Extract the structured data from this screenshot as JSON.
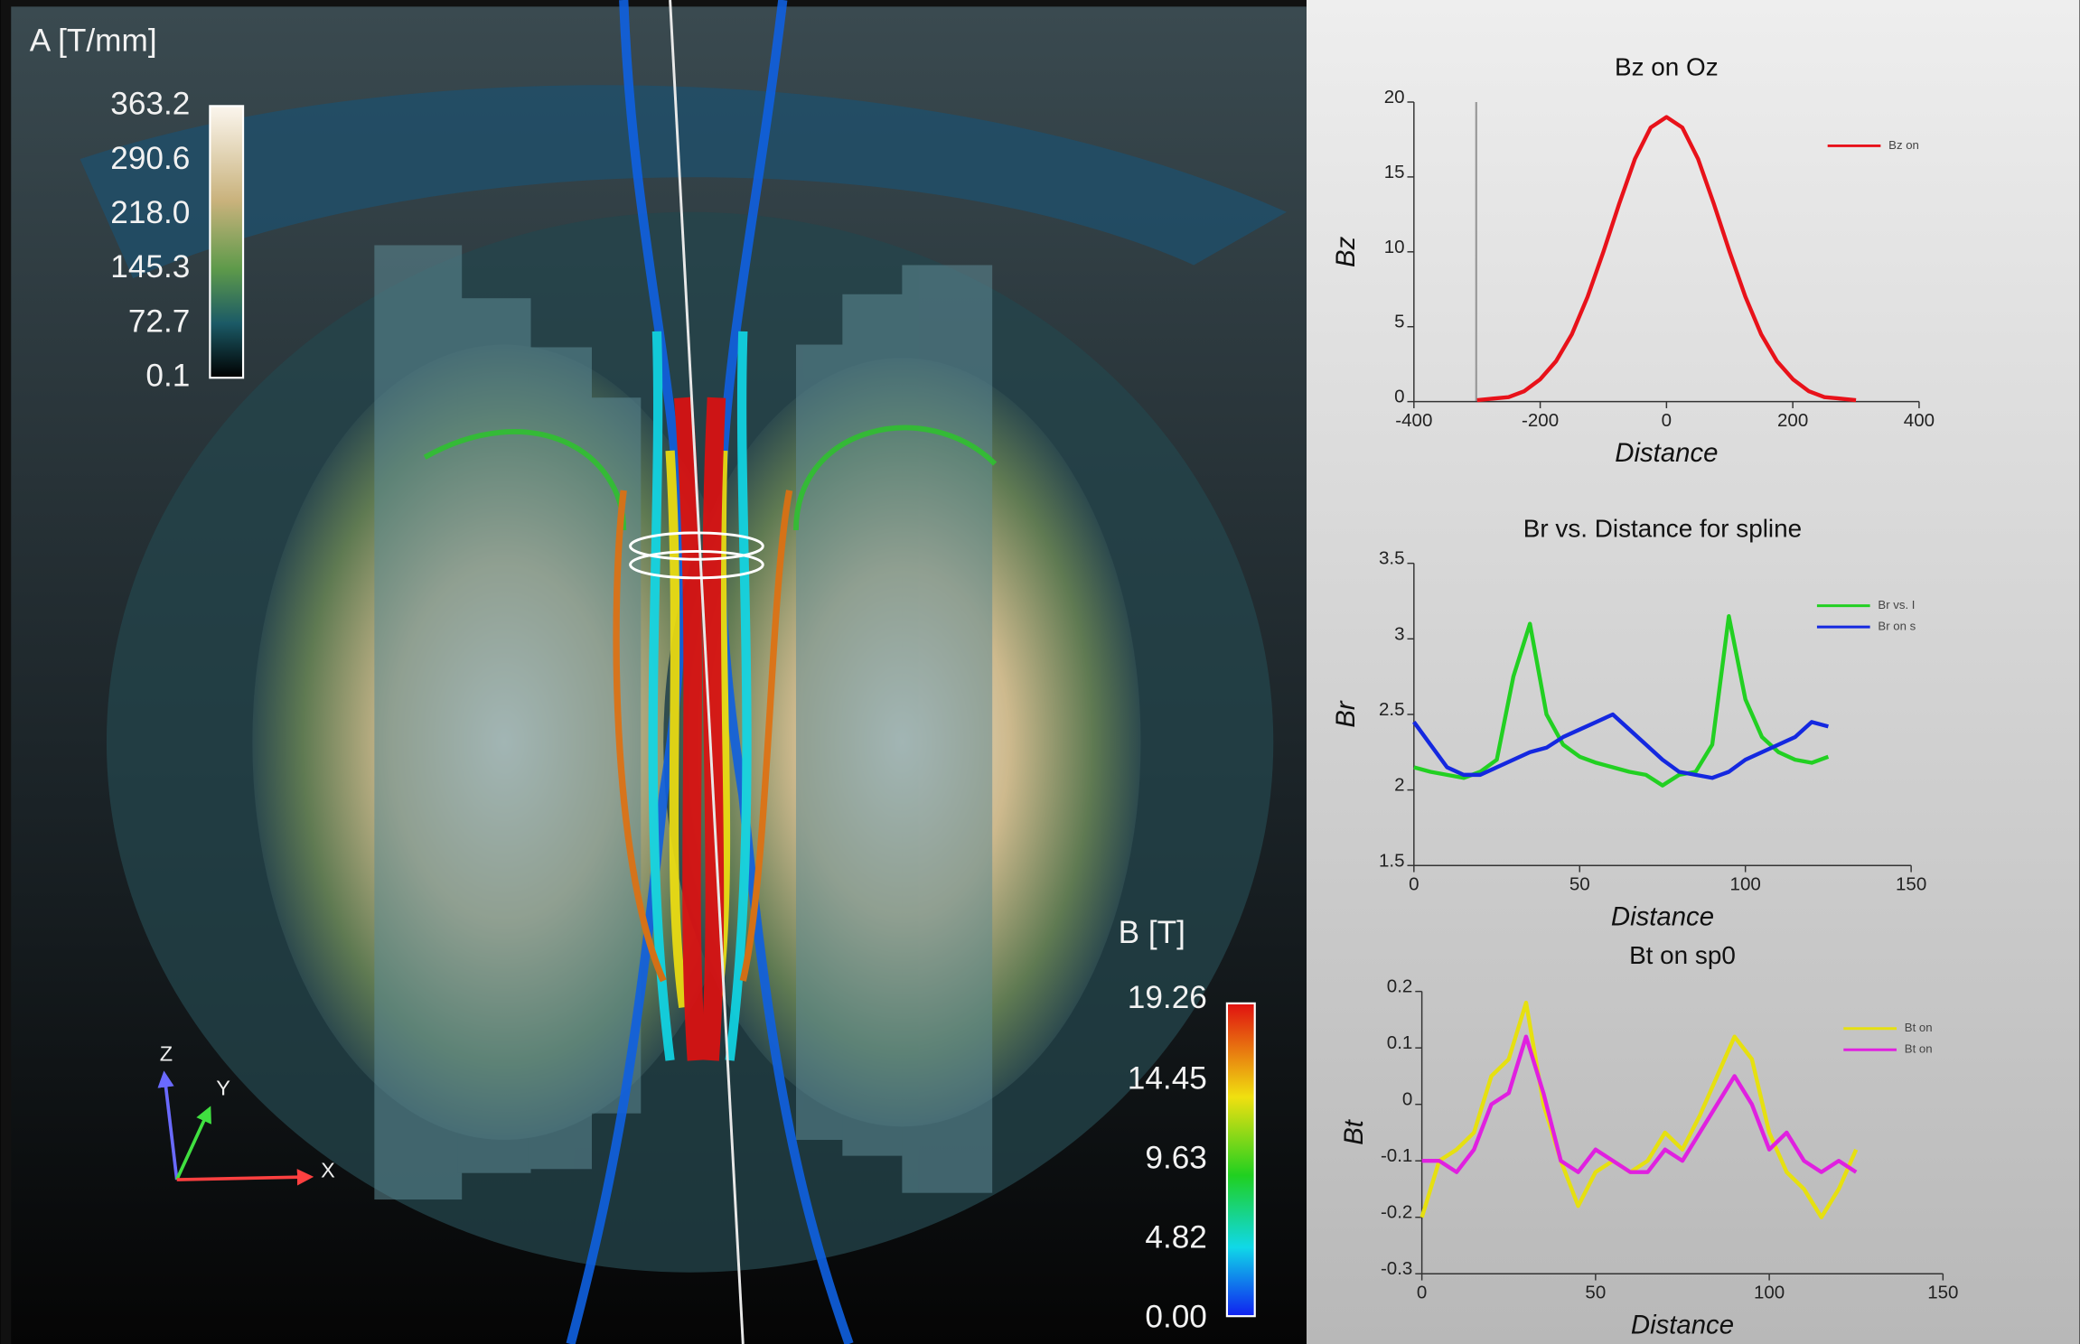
{
  "colorbar_a": {
    "title": "A [T/mm]",
    "labels": [
      "363.2",
      "290.6",
      "218.0",
      "145.3",
      "72.7",
      "0.1"
    ]
  },
  "colorbar_b": {
    "title": "B [T]",
    "labels": [
      "19.26",
      "14.45",
      "9.63",
      "4.82",
      "0.00"
    ]
  },
  "axes_triad": {
    "z": "Z",
    "y": "Y",
    "x": "X"
  },
  "chart_data": [
    {
      "type": "line",
      "title": "Bz on Oz",
      "x_label": "Distance",
      "y_label": "Bz",
      "x": [
        -300,
        -275,
        -250,
        -225,
        -200,
        -175,
        -150,
        -125,
        -100,
        -75,
        -50,
        -25,
        0,
        25,
        50,
        75,
        100,
        125,
        150,
        175,
        200,
        225,
        250,
        275,
        300
      ],
      "series": [
        {
          "name": "Bz on",
          "color": "#e8121a",
          "values": [
            0.1,
            0.2,
            0.3,
            0.7,
            1.5,
            2.7,
            4.5,
            7.0,
            10.0,
            13.2,
            16.2,
            18.3,
            19.0,
            18.3,
            16.2,
            13.2,
            10.0,
            7.0,
            4.5,
            2.7,
            1.5,
            0.7,
            0.3,
            0.2,
            0.1
          ]
        }
      ],
      "xlim": [
        -400,
        400
      ],
      "xticks": [
        -400,
        -200,
        0,
        200,
        400
      ],
      "ylim": [
        0,
        20
      ],
      "yticks": [
        0,
        5,
        10,
        15,
        20
      ]
    },
    {
      "type": "line",
      "title": "Br vs. Distance for spline",
      "x_label": "Distance",
      "y_label": "Br",
      "x": [
        0,
        5,
        10,
        15,
        20,
        25,
        30,
        35,
        40,
        45,
        50,
        55,
        60,
        65,
        70,
        75,
        80,
        85,
        90,
        95,
        100,
        105,
        110,
        115,
        120,
        125
      ],
      "series": [
        {
          "name": "Br vs. I",
          "color": "#22d022",
          "values": [
            2.15,
            2.12,
            2.1,
            2.08,
            2.12,
            2.2,
            2.75,
            3.1,
            2.5,
            2.3,
            2.22,
            2.18,
            2.15,
            2.12,
            2.1,
            2.03,
            2.1,
            2.12,
            2.3,
            3.15,
            2.6,
            2.35,
            2.25,
            2.2,
            2.18,
            2.22
          ]
        },
        {
          "name": "Br on s",
          "color": "#1428e0",
          "values": [
            2.45,
            2.3,
            2.15,
            2.1,
            2.1,
            2.15,
            2.2,
            2.25,
            2.28,
            2.35,
            2.4,
            2.45,
            2.5,
            2.4,
            2.3,
            2.2,
            2.12,
            2.1,
            2.08,
            2.12,
            2.2,
            2.25,
            2.3,
            2.35,
            2.45,
            2.42
          ]
        }
      ],
      "xlim": [
        0,
        150
      ],
      "xticks": [
        0,
        50,
        100,
        150
      ],
      "ylim": [
        1.5,
        3.5
      ],
      "yticks": [
        1.5,
        2,
        2.5,
        3,
        3.5
      ]
    },
    {
      "type": "line",
      "title": "Bt on sp0",
      "x_label": "Distance",
      "y_label": "Bt",
      "x": [
        0,
        5,
        10,
        15,
        20,
        25,
        30,
        35,
        40,
        45,
        50,
        55,
        60,
        65,
        70,
        75,
        80,
        85,
        90,
        95,
        100,
        105,
        110,
        115,
        120,
        125
      ],
      "series": [
        {
          "name": "Bt on",
          "color": "#e6e010",
          "values": [
            -0.2,
            -0.1,
            -0.08,
            -0.05,
            0.05,
            0.08,
            0.18,
            0.0,
            -0.1,
            -0.18,
            -0.12,
            -0.1,
            -0.12,
            -0.1,
            -0.05,
            -0.08,
            -0.02,
            0.05,
            0.12,
            0.08,
            -0.05,
            -0.12,
            -0.15,
            -0.2,
            -0.15,
            -0.08
          ]
        },
        {
          "name": "Bt on",
          "color": "#e020e0",
          "values": [
            -0.1,
            -0.1,
            -0.12,
            -0.08,
            0.0,
            0.02,
            0.12,
            0.02,
            -0.1,
            -0.12,
            -0.08,
            -0.1,
            -0.12,
            -0.12,
            -0.08,
            -0.1,
            -0.05,
            0.0,
            0.05,
            0.0,
            -0.08,
            -0.05,
            -0.1,
            -0.12,
            -0.1,
            -0.12
          ]
        }
      ],
      "xlim": [
        0,
        150
      ],
      "xticks": [
        0,
        50,
        100,
        150
      ],
      "ylim": [
        -0.3,
        0.2
      ],
      "yticks": [
        -0.3,
        -0.2,
        -0.1,
        0,
        0.1,
        0.2
      ]
    }
  ]
}
